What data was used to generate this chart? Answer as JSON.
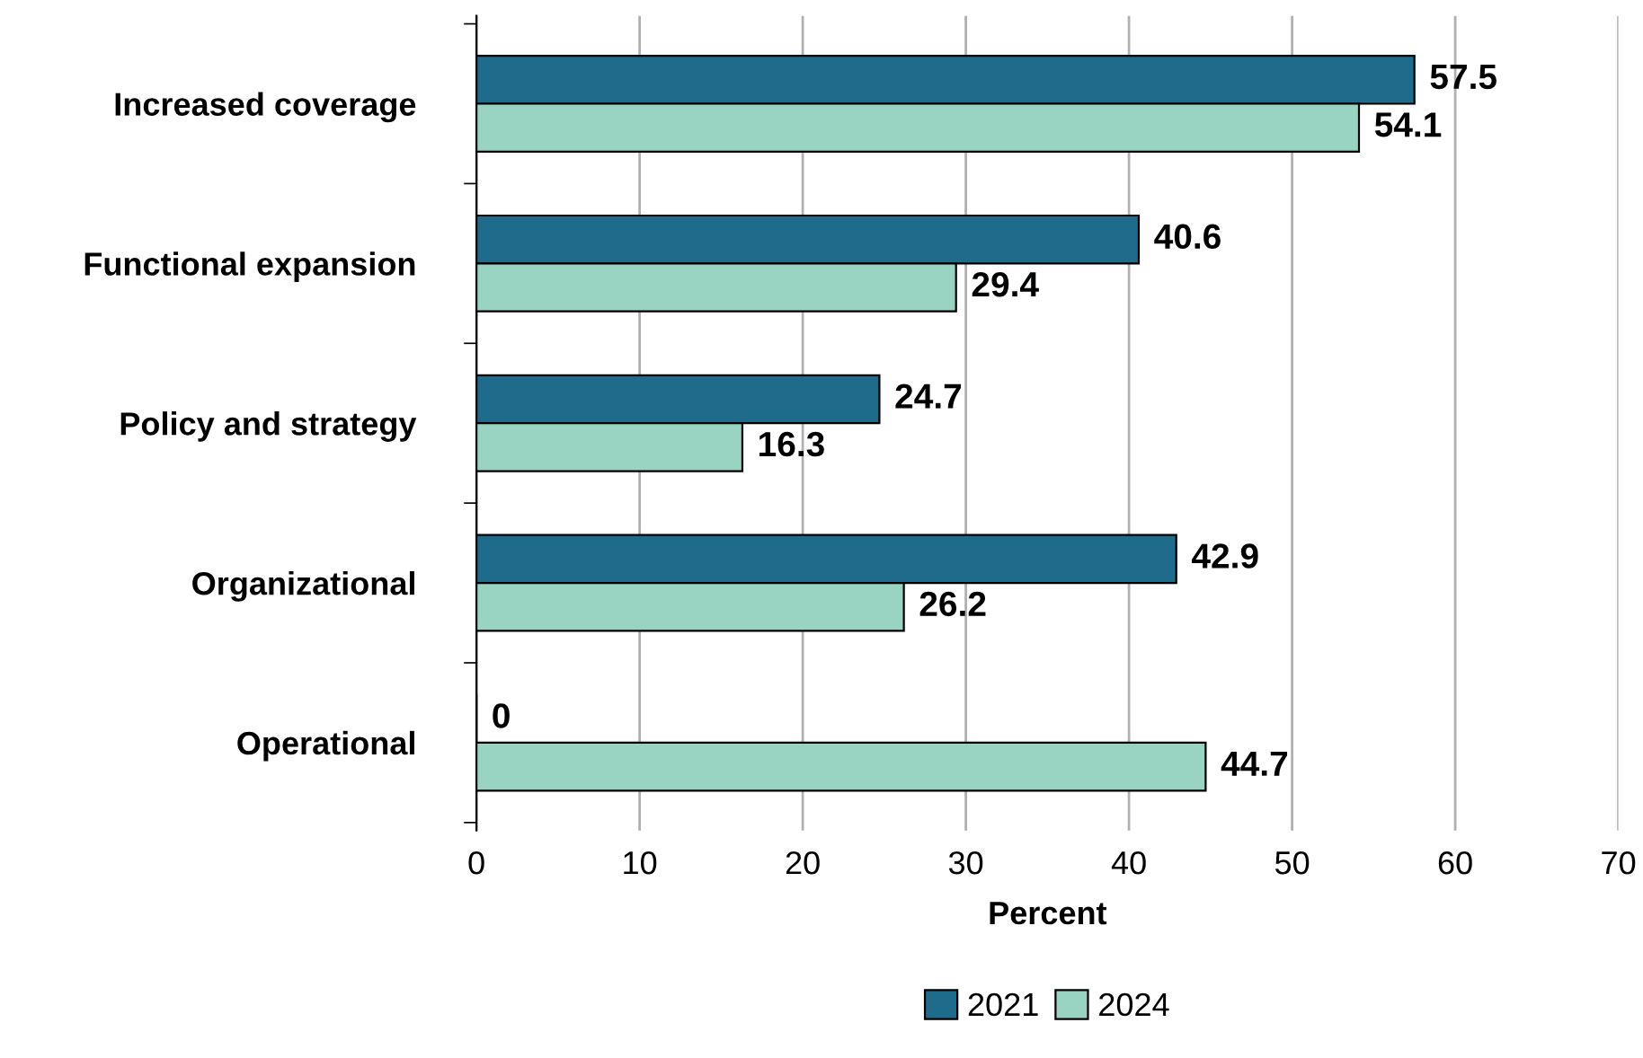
{
  "chart_data": {
    "type": "bar",
    "orientation": "horizontal",
    "xlabel": "Percent",
    "categories": [
      "Increased coverage",
      "Functional expansion",
      "Policy and strategy",
      "Organizational",
      "Operational"
    ],
    "series": [
      {
        "name": "2021",
        "color": "#1f6b8c",
        "values": [
          57.5,
          40.6,
          24.7,
          42.9,
          0
        ]
      },
      {
        "name": "2024",
        "color": "#99d3c2",
        "values": [
          54.1,
          29.4,
          16.3,
          26.2,
          44.7
        ]
      }
    ],
    "xlim": [
      0,
      70
    ],
    "xticks": [
      0,
      10,
      20,
      30,
      40,
      50,
      60,
      70
    ],
    "grid": "x",
    "legend": "bottom",
    "data_labels": true
  }
}
